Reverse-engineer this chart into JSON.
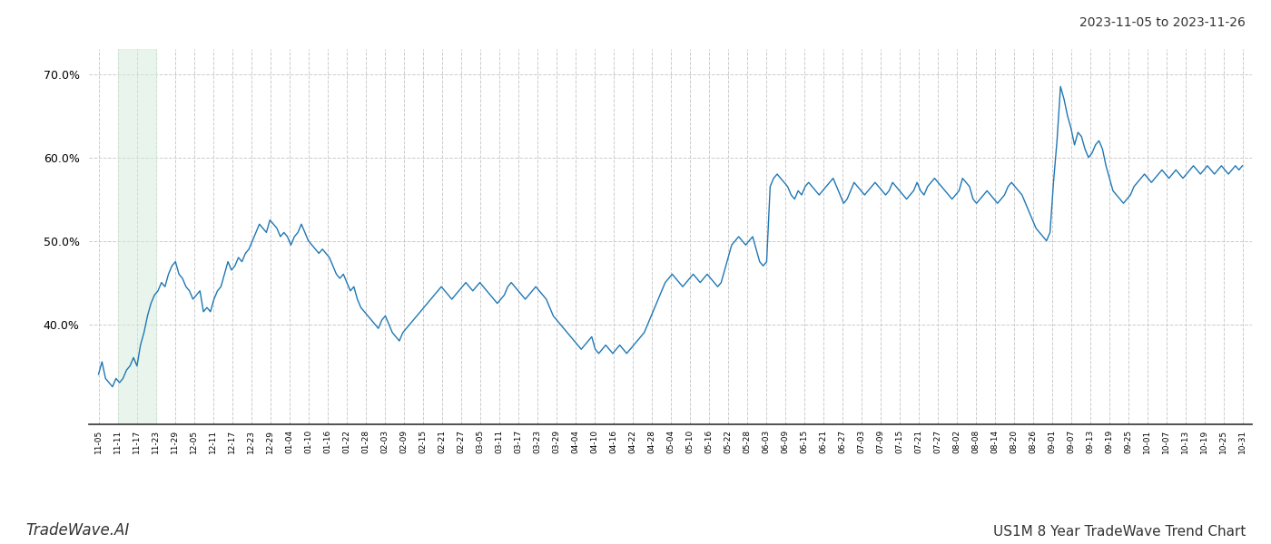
{
  "title_top_right": "2023-11-05 to 2023-11-26",
  "title_bottom_right": "US1M 8 Year TradeWave Trend Chart",
  "title_bottom_left": "TradeWave.AI",
  "line_color": "#1f77b4",
  "line_width": 1.0,
  "background_color": "#ffffff",
  "grid_color": "#cccccc",
  "grid_style": "--",
  "shade_color": "#d4edda",
  "shade_alpha": 0.5,
  "shade_x_start_label": "11-11",
  "shade_x_end_label": "11-23",
  "ylim": [
    28,
    73
  ],
  "yticks": [
    40.0,
    50.0,
    60.0,
    70.0
  ],
  "x_labels": [
    "11-05",
    "11-11",
    "11-17",
    "11-23",
    "11-29",
    "12-05",
    "12-11",
    "12-17",
    "12-23",
    "12-29",
    "01-04",
    "01-10",
    "01-16",
    "01-22",
    "01-28",
    "02-03",
    "02-09",
    "02-15",
    "02-21",
    "02-27",
    "03-05",
    "03-11",
    "03-17",
    "03-23",
    "03-29",
    "04-04",
    "04-10",
    "04-16",
    "04-22",
    "04-28",
    "05-04",
    "05-10",
    "05-16",
    "05-22",
    "05-28",
    "06-03",
    "06-09",
    "06-15",
    "06-21",
    "06-27",
    "07-03",
    "07-09",
    "07-15",
    "07-21",
    "07-27",
    "08-02",
    "08-08",
    "08-14",
    "08-20",
    "08-26",
    "09-01",
    "09-07",
    "09-13",
    "09-19",
    "09-25",
    "10-01",
    "10-07",
    "10-13",
    "10-19",
    "10-25",
    "10-31"
  ],
  "y_values": [
    34.0,
    35.5,
    33.5,
    33.0,
    32.5,
    33.5,
    33.0,
    33.5,
    34.5,
    35.0,
    36.0,
    35.0,
    37.5,
    39.0,
    41.0,
    42.5,
    43.5,
    44.0,
    45.0,
    44.5,
    46.0,
    47.0,
    47.5,
    46.0,
    45.5,
    44.5,
    44.0,
    43.0,
    43.5,
    44.0,
    41.5,
    42.0,
    41.5,
    43.0,
    44.0,
    44.5,
    46.0,
    47.5,
    46.5,
    47.0,
    48.0,
    47.5,
    48.5,
    49.0,
    50.0,
    51.0,
    52.0,
    51.5,
    51.0,
    52.5,
    52.0,
    51.5,
    50.5,
    51.0,
    50.5,
    49.5,
    50.5,
    51.0,
    52.0,
    51.0,
    50.0,
    49.5,
    49.0,
    48.5,
    49.0,
    48.5,
    48.0,
    47.0,
    46.0,
    45.5,
    46.0,
    45.0,
    44.0,
    44.5,
    43.0,
    42.0,
    41.5,
    41.0,
    40.5,
    40.0,
    39.5,
    40.5,
    41.0,
    40.0,
    39.0,
    38.5,
    38.0,
    39.0,
    39.5,
    40.0,
    40.5,
    41.0,
    41.5,
    42.0,
    42.5,
    43.0,
    43.5,
    44.0,
    44.5,
    44.0,
    43.5,
    43.0,
    43.5,
    44.0,
    44.5,
    45.0,
    44.5,
    44.0,
    44.5,
    45.0,
    44.5,
    44.0,
    43.5,
    43.0,
    42.5,
    43.0,
    43.5,
    44.5,
    45.0,
    44.5,
    44.0,
    43.5,
    43.0,
    43.5,
    44.0,
    44.5,
    44.0,
    43.5,
    43.0,
    42.0,
    41.0,
    40.5,
    40.0,
    39.5,
    39.0,
    38.5,
    38.0,
    37.5,
    37.0,
    37.5,
    38.0,
    38.5,
    37.0,
    36.5,
    37.0,
    37.5,
    37.0,
    36.5,
    37.0,
    37.5,
    37.0,
    36.5,
    37.0,
    37.5,
    38.0,
    38.5,
    39.0,
    40.0,
    41.0,
    42.0,
    43.0,
    44.0,
    45.0,
    45.5,
    46.0,
    45.5,
    45.0,
    44.5,
    45.0,
    45.5,
    46.0,
    45.5,
    45.0,
    45.5,
    46.0,
    45.5,
    45.0,
    44.5,
    45.0,
    46.5,
    48.0,
    49.5,
    50.0,
    50.5,
    50.0,
    49.5,
    50.0,
    50.5,
    49.0,
    47.5,
    47.0,
    47.5,
    56.5,
    57.5,
    58.0,
    57.5,
    57.0,
    56.5,
    55.5,
    55.0,
    56.0,
    55.5,
    56.5,
    57.0,
    56.5,
    56.0,
    55.5,
    56.0,
    56.5,
    57.0,
    57.5,
    56.5,
    55.5,
    54.5,
    55.0,
    56.0,
    57.0,
    56.5,
    56.0,
    55.5,
    56.0,
    56.5,
    57.0,
    56.5,
    56.0,
    55.5,
    56.0,
    57.0,
    56.5,
    56.0,
    55.5,
    55.0,
    55.5,
    56.0,
    57.0,
    56.0,
    55.5,
    56.5,
    57.0,
    57.5,
    57.0,
    56.5,
    56.0,
    55.5,
    55.0,
    55.5,
    56.0,
    57.5,
    57.0,
    56.5,
    55.0,
    54.5,
    55.0,
    55.5,
    56.0,
    55.5,
    55.0,
    54.5,
    55.0,
    55.5,
    56.5,
    57.0,
    56.5,
    56.0,
    55.5,
    54.5,
    53.5,
    52.5,
    51.5,
    51.0,
    50.5,
    50.0,
    51.0,
    57.0,
    62.0,
    68.5,
    67.0,
    65.0,
    63.5,
    61.5,
    63.0,
    62.5,
    61.0,
    60.0,
    60.5,
    61.5,
    62.0,
    61.0,
    59.0,
    57.5,
    56.0,
    55.5,
    55.0,
    54.5,
    55.0,
    55.5,
    56.5,
    57.0,
    57.5,
    58.0,
    57.5,
    57.0,
    57.5,
    58.0,
    58.5,
    58.0,
    57.5,
    58.0,
    58.5,
    58.0,
    57.5,
    58.0,
    58.5,
    59.0,
    58.5,
    58.0,
    58.5,
    59.0,
    58.5,
    58.0,
    58.5,
    59.0,
    58.5,
    58.0,
    58.5,
    59.0,
    58.5,
    59.0
  ]
}
